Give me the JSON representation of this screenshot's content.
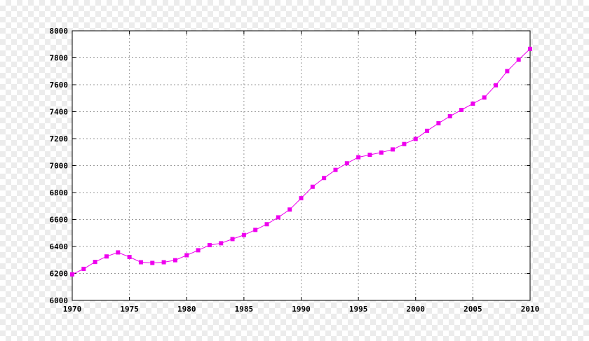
{
  "chart_data": {
    "type": "line",
    "title": "",
    "xlabel": "",
    "ylabel": "",
    "xlim": [
      1970,
      2010
    ],
    "ylim": [
      6000,
      8000
    ],
    "x_ticks": [
      1970,
      1975,
      1980,
      1985,
      1990,
      1995,
      2000,
      2005,
      2010
    ],
    "y_ticks": [
      6000,
      6200,
      6400,
      6600,
      6800,
      7000,
      7200,
      7400,
      7600,
      7800,
      8000
    ],
    "x_tick_labels": [
      "1970",
      "1975",
      "1980",
      "1985",
      "1990",
      "1995",
      "2000",
      "2005",
      "2010"
    ],
    "y_tick_labels": [
      "6000",
      "6200",
      "6400",
      "6600",
      "6800",
      "7000",
      "7200",
      "7400",
      "7600",
      "7800",
      "8000"
    ],
    "grid": true,
    "legend": "none",
    "series_color": "#ee00ee",
    "marker": "square",
    "x": [
      1970,
      1971,
      1972,
      1973,
      1974,
      1975,
      1976,
      1977,
      1978,
      1979,
      1980,
      1981,
      1982,
      1983,
      1984,
      1985,
      1986,
      1987,
      1988,
      1989,
      1990,
      1991,
      1992,
      1993,
      1994,
      1995,
      1996,
      1997,
      1998,
      1999,
      2000,
      2001,
      2002,
      2003,
      2004,
      2005,
      2006,
      2007,
      2008,
      2009,
      2010
    ],
    "values": [
      6193,
      6234,
      6285,
      6326,
      6356,
      6322,
      6283,
      6278,
      6283,
      6298,
      6335,
      6372,
      6410,
      6424,
      6455,
      6485,
      6523,
      6565,
      6616,
      6674,
      6758,
      6843,
      6908,
      6968,
      7017,
      7062,
      7080,
      7097,
      7120,
      7160,
      7198,
      7258,
      7314,
      7366,
      7413,
      7459,
      7505,
      7596,
      7701,
      7786,
      7866
    ]
  }
}
